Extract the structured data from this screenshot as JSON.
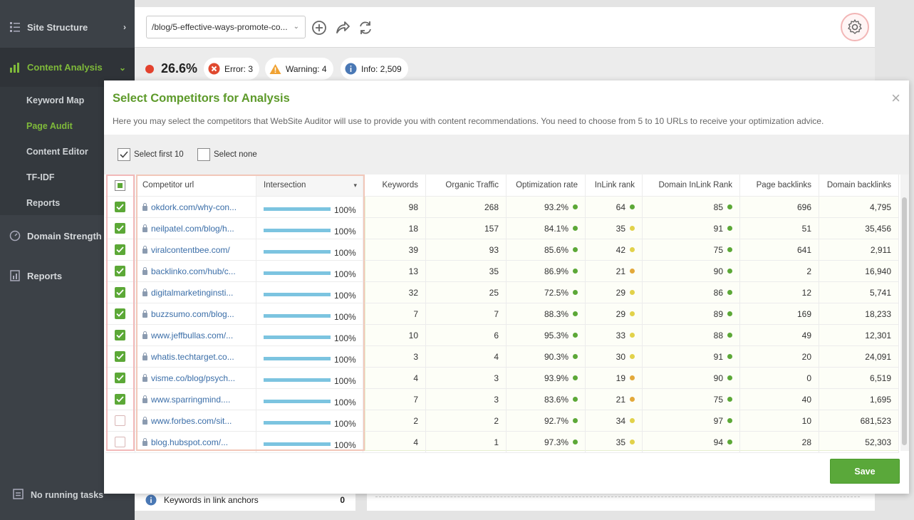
{
  "sidebar": {
    "items": [
      {
        "label": "Site Structure",
        "icon": "list-icon",
        "chevron": "›"
      },
      {
        "label": "Content Analysis",
        "icon": "chart-icon",
        "chevron": "⌄"
      },
      {
        "label": "Domain Strength",
        "icon": "gauge-icon"
      },
      {
        "label": "Reports",
        "icon": "report-icon"
      }
    ],
    "sub_items": [
      {
        "label": "Keyword Map"
      },
      {
        "label": "Page Audit"
      },
      {
        "label": "Content Editor"
      },
      {
        "label": "TF-IDF"
      },
      {
        "label": "Reports"
      }
    ],
    "footer": "No running tasks"
  },
  "toolbar": {
    "url": "/blog/5-effective-ways-promote-co..."
  },
  "status": {
    "score": "26.6%",
    "error": "Error: 3",
    "warning": "Warning: 4",
    "info": "Info: 2,509"
  },
  "underlay": {
    "row_label": "Keywords in link anchors",
    "row_value": "0"
  },
  "modal": {
    "title": "Select Competitors for Analysis",
    "description": "Here you may select the competitors that WebSite Auditor will use to provide you with content recommendations. You need to choose from 5 to 10 URLs to receive your optimization advice.",
    "select_first": "Select first 10",
    "select_none": "Select none",
    "save": "Save",
    "columns": [
      "Competitor url",
      "Intersection",
      "Keywords",
      "Organic Traffic",
      "Optimization rate",
      "InLink rank",
      "Domain InLink Rank",
      "Page backlinks",
      "Domain backlinks"
    ],
    "colors": {
      "green": "#5ca837",
      "yellow": "#e2d24a",
      "orange": "#e3a93a",
      "accent": "#5d9a2a"
    },
    "rows": [
      {
        "checked": true,
        "url": "okdork.com/why-con...",
        "intersection": "100%",
        "keywords": "98",
        "traffic": "268",
        "opt": "93.2%",
        "inlink": "64",
        "inlink_dot": "green",
        "domain_inlink": "85",
        "page_bl": "696",
        "domain_bl": "4,795"
      },
      {
        "checked": true,
        "url": "neilpatel.com/blog/h...",
        "intersection": "100%",
        "keywords": "18",
        "traffic": "157",
        "opt": "84.1%",
        "inlink": "35",
        "inlink_dot": "yellow",
        "domain_inlink": "91",
        "page_bl": "51",
        "domain_bl": "35,456"
      },
      {
        "checked": true,
        "url": "viralcontentbee.com/",
        "intersection": "100%",
        "keywords": "39",
        "traffic": "93",
        "opt": "85.6%",
        "inlink": "42",
        "inlink_dot": "yellow",
        "domain_inlink": "75",
        "page_bl": "641",
        "domain_bl": "2,911"
      },
      {
        "checked": true,
        "url": "backlinko.com/hub/c...",
        "intersection": "100%",
        "keywords": "13",
        "traffic": "35",
        "opt": "86.9%",
        "inlink": "21",
        "inlink_dot": "orange",
        "domain_inlink": "90",
        "page_bl": "2",
        "domain_bl": "16,940"
      },
      {
        "checked": true,
        "url": "digitalmarketinginsti...",
        "intersection": "100%",
        "keywords": "32",
        "traffic": "25",
        "opt": "72.5%",
        "inlink": "29",
        "inlink_dot": "yellow",
        "domain_inlink": "86",
        "page_bl": "12",
        "domain_bl": "5,741"
      },
      {
        "checked": true,
        "url": "buzzsumo.com/blog...",
        "intersection": "100%",
        "keywords": "7",
        "traffic": "7",
        "opt": "88.3%",
        "inlink": "29",
        "inlink_dot": "yellow",
        "domain_inlink": "89",
        "page_bl": "169",
        "domain_bl": "18,233"
      },
      {
        "checked": true,
        "url": "www.jeffbullas.com/...",
        "intersection": "100%",
        "keywords": "10",
        "traffic": "6",
        "opt": "95.3%",
        "inlink": "33",
        "inlink_dot": "yellow",
        "domain_inlink": "88",
        "page_bl": "49",
        "domain_bl": "12,301"
      },
      {
        "checked": true,
        "url": "whatis.techtarget.co...",
        "intersection": "100%",
        "keywords": "3",
        "traffic": "4",
        "opt": "90.3%",
        "inlink": "30",
        "inlink_dot": "yellow",
        "domain_inlink": "91",
        "page_bl": "20",
        "domain_bl": "24,091"
      },
      {
        "checked": true,
        "url": "visme.co/blog/psych...",
        "intersection": "100%",
        "keywords": "4",
        "traffic": "3",
        "opt": "93.9%",
        "inlink": "19",
        "inlink_dot": "orange",
        "domain_inlink": "90",
        "page_bl": "0",
        "domain_bl": "6,519"
      },
      {
        "checked": true,
        "url": "www.sparringmind....",
        "intersection": "100%",
        "keywords": "7",
        "traffic": "3",
        "opt": "83.6%",
        "inlink": "21",
        "inlink_dot": "orange",
        "domain_inlink": "75",
        "page_bl": "40",
        "domain_bl": "1,695"
      },
      {
        "checked": false,
        "url": "www.forbes.com/sit...",
        "intersection": "100%",
        "keywords": "2",
        "traffic": "2",
        "opt": "92.7%",
        "inlink": "34",
        "inlink_dot": "yellow",
        "domain_inlink": "97",
        "page_bl": "10",
        "domain_bl": "681,523"
      },
      {
        "checked": false,
        "url": "blog.hubspot.com/...",
        "intersection": "100%",
        "keywords": "4",
        "traffic": "1",
        "opt": "97.3%",
        "inlink": "35",
        "inlink_dot": "yellow",
        "domain_inlink": "94",
        "page_bl": "28",
        "domain_bl": "52,303"
      }
    ]
  }
}
